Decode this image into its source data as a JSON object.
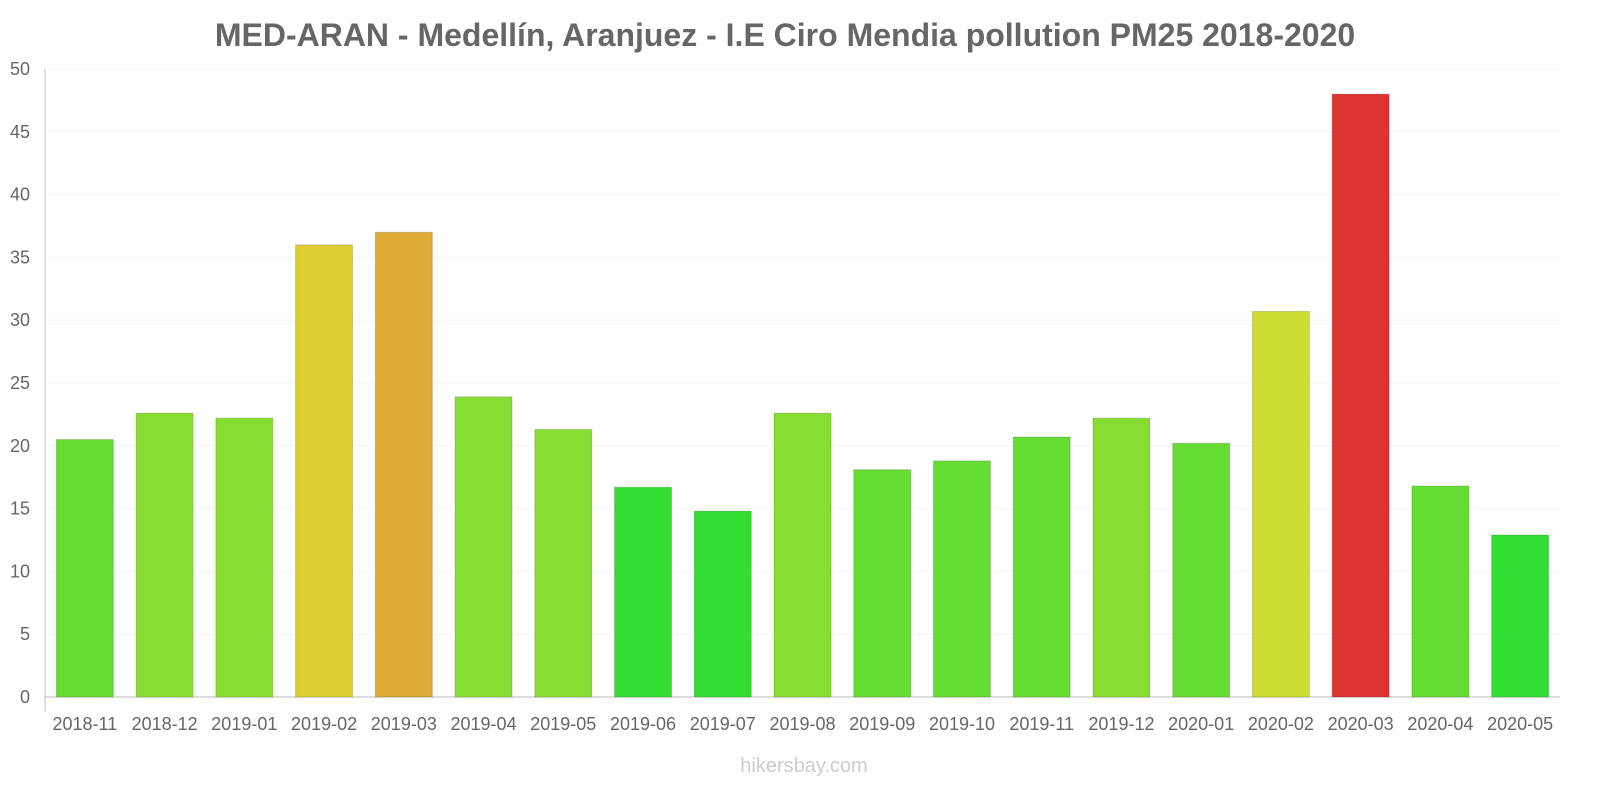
{
  "chart_data": {
    "type": "bar",
    "title": "MED-ARAN - Medellín, Aranjuez - I.E Ciro Mendia pollution PM25 2018-2020",
    "xlabel": "",
    "ylabel": "",
    "ylim": [
      0,
      50
    ],
    "yticks": [
      0,
      5,
      10,
      15,
      20,
      25,
      30,
      35,
      40,
      45,
      50
    ],
    "grid": true,
    "categories": [
      "2018-11",
      "2018-12",
      "2019-01",
      "2019-02",
      "2019-03",
      "2019-04",
      "2019-05",
      "2019-06",
      "2019-07",
      "2019-08",
      "2019-09",
      "2019-10",
      "2019-11",
      "2019-12",
      "2020-01",
      "2020-02",
      "2020-03",
      "2020-04",
      "2020-05"
    ],
    "values": [
      20.5,
      22.6,
      22.2,
      36,
      37,
      23.9,
      21.3,
      16.7,
      14.8,
      22.6,
      18.1,
      18.8,
      20.7,
      22.2,
      20.2,
      30.7,
      48,
      16.8,
      12.9
    ],
    "colors": [
      "#66dd33",
      "#88dd33",
      "#88dd33",
      "#ddcc33",
      "#ddaa33",
      "#88dd33",
      "#88dd33",
      "#33dd33",
      "#33dd33",
      "#88dd33",
      "#66dd33",
      "#66dd33",
      "#66dd33",
      "#88dd33",
      "#66dd33",
      "#ccdd33",
      "#dd3333",
      "#66dd33",
      "#33dd33"
    ]
  },
  "watermark": "hikersbay.com"
}
